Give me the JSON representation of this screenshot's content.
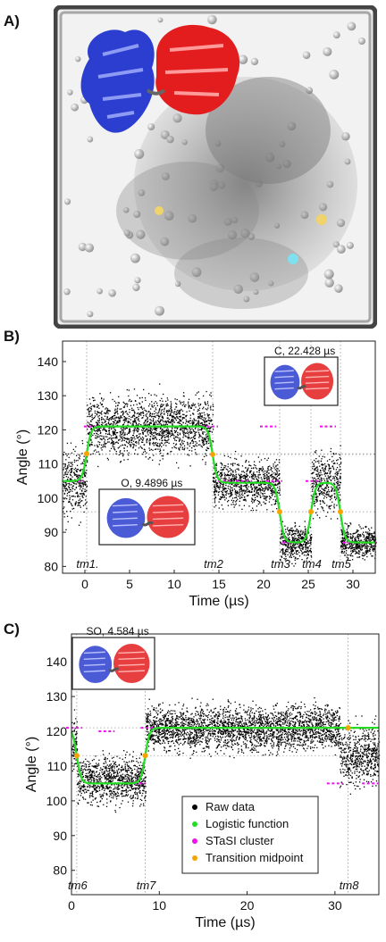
{
  "panels": {
    "a": {
      "label": "A)"
    },
    "b": {
      "label": "B)"
    },
    "c": {
      "label": "C)"
    }
  },
  "colors": {
    "raw": "#000000",
    "logistic": "#22dd22",
    "stasi": "#ee11ee",
    "midpoint": "#f5a300",
    "domain_blue": "#2c3ecf",
    "domain_red": "#e31d1d"
  },
  "chart_data": [
    {
      "type": "scatter",
      "panel": "B",
      "xlabel": "Time (µs)",
      "ylabel": "Angle (°)",
      "xlim": [
        -2.5,
        32.5
      ],
      "ylim": [
        78,
        146
      ],
      "xticks": [
        0,
        5,
        10,
        15,
        20,
        25,
        30
      ],
      "yticks": [
        80,
        90,
        100,
        110,
        120,
        130,
        140
      ],
      "grid": false,
      "transitions": [
        {
          "label": "tm1.",
          "t": 0.2
        },
        {
          "label": "tm2",
          "t": 14.3
        },
        {
          "label": "tm3",
          "t": 21.8
        },
        {
          "label": "tm4",
          "t": 25.3
        },
        {
          "label": "tm5",
          "t": 28.6
        }
      ],
      "series": [
        {
          "name": "Logistic function",
          "segments": [
            {
              "t": 0.2,
              "from": 105,
              "to": 121
            },
            {
              "t": 14.3,
              "from": 121,
              "to": 104.5
            },
            {
              "t": 21.8,
              "from": 104.5,
              "to": 87
            },
            {
              "t": 25.3,
              "from": 87,
              "to": 104.5
            },
            {
              "t": 28.6,
              "from": 104.5,
              "to": 87
            }
          ]
        },
        {
          "name": "STaSI cluster",
          "x": [
            -1.0,
            0.8,
            3.2,
            14.0,
            15.8,
            17.8,
            20.5,
            21.2,
            23.0,
            25.6,
            27.2,
            29.8,
            31.8
          ],
          "y": [
            105,
            121,
            121,
            121,
            105,
            105,
            121,
            105,
            87,
            105,
            121,
            87,
            87
          ]
        },
        {
          "name": "Transition midpoint",
          "x": [
            0.2,
            14.3,
            21.8,
            25.3,
            28.6
          ],
          "y": [
            113,
            112.8,
            96,
            96,
            96
          ]
        }
      ],
      "raw_data_segments": [
        {
          "x0": -2.5,
          "x1": 0.2,
          "mean": 105,
          "spread": 9
        },
        {
          "x0": 0.2,
          "x1": 14.3,
          "mean": 121,
          "spread": 8
        },
        {
          "x0": 14.3,
          "x1": 21.8,
          "mean": 104.5,
          "spread": 6
        },
        {
          "x0": 21.8,
          "x1": 25.3,
          "mean": 87,
          "spread": 5
        },
        {
          "x0": 25.3,
          "x1": 28.6,
          "mean": 104.5,
          "spread": 8
        },
        {
          "x0": 28.6,
          "x1": 32.5,
          "mean": 87,
          "spread": 4
        }
      ],
      "insets": [
        {
          "title": "O, 9.4896 µs",
          "position": "lower-left"
        },
        {
          "title": "C, 22.428 µs",
          "position": "upper-right"
        }
      ]
    },
    {
      "type": "scatter",
      "panel": "C",
      "xlabel": "Time (µs)",
      "ylabel": "Angle (°)",
      "xlim": [
        0,
        35
      ],
      "ylim": [
        73,
        148
      ],
      "xticks": [
        0,
        10,
        20,
        30
      ],
      "yticks": [
        80,
        90,
        100,
        110,
        120,
        130,
        140
      ],
      "grid": false,
      "transitions": [
        {
          "label": "tm6",
          "t": 0.6
        },
        {
          "label": "tm7",
          "t": 8.4
        },
        {
          "label": "tm8",
          "t": 31.5
        }
      ],
      "series": [
        {
          "name": "Logistic function",
          "segments": [
            {
              "t": 0.6,
              "from": 121,
              "to": 105
            },
            {
              "t": 8.4,
              "from": 105,
              "to": 121
            }
          ]
        },
        {
          "name": "STaSI cluster",
          "x": [
            0.3,
            3.5,
            4.0,
            7.5,
            8.8,
            10.5,
            12.0,
            30.0,
            33.0,
            34.0
          ],
          "y": [
            121,
            105,
            120,
            105,
            121,
            121,
            121,
            105,
            121,
            105
          ]
        },
        {
          "name": "Transition midpoint",
          "x": [
            0.6,
            8.4,
            31.5
          ],
          "y": [
            113,
            113,
            121
          ]
        }
      ],
      "raw_data_segments": [
        {
          "x0": 0,
          "x1": 0.6,
          "mean": 116,
          "spread": 7
        },
        {
          "x0": 0.6,
          "x1": 8.4,
          "mean": 106,
          "spread": 6
        },
        {
          "x0": 8.4,
          "x1": 30.5,
          "mean": 121,
          "spread": 6
        },
        {
          "x0": 30.5,
          "x1": 35,
          "mean": 113,
          "spread": 8
        }
      ],
      "insets": [
        {
          "title": "SO, 4.584 µs",
          "position": "upper-left"
        }
      ],
      "legend": {
        "position": "lower-right",
        "entries": [
          "Raw data",
          "Logistic function",
          "STaSI cluster",
          "Transition midpoint"
        ]
      }
    }
  ]
}
